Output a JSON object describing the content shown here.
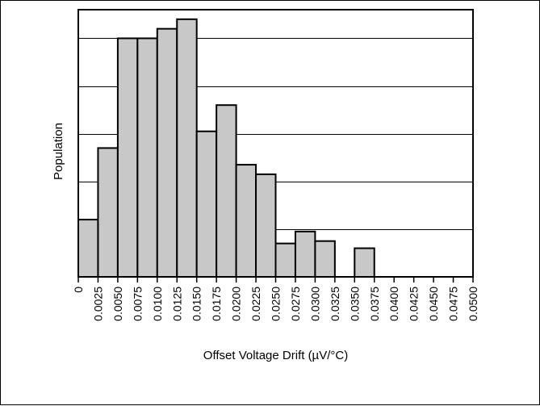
{
  "chart_data": {
    "type": "bar",
    "xlabel": "Offset Voltage Drift (µV/°C)",
    "ylabel": "Population",
    "tick_labels": [
      "0",
      "0.0025",
      "0.0050",
      "0.0075",
      "0.0100",
      "0.0125",
      "0.0150",
      "0.0175",
      "0.0200",
      "0.0225",
      "0.0250",
      "0.0275",
      "0.0300",
      "0.0325",
      "0.0350",
      "0.0375",
      "0.0400",
      "0.0425",
      "0.0450",
      "0.0475",
      "0.0500"
    ],
    "bin_edges": [
      0,
      0.0025,
      0.005,
      0.0075,
      0.01,
      0.0125,
      0.015,
      0.0175,
      0.02,
      0.0225,
      0.025,
      0.0275,
      0.03,
      0.0325,
      0.035,
      0.0375,
      0.04,
      0.0425,
      0.045,
      0.0475,
      0.05
    ],
    "values": [
      0.8,
      2.3,
      4.6,
      4.6,
      4.8,
      5.0,
      2.65,
      3.2,
      1.95,
      1.75,
      0.3,
      0.55,
      0.35,
      0.0,
      0.2,
      0.0,
      0,
      0,
      0,
      0
    ],
    "xlim": [
      0,
      0.05
    ],
    "ylim": [
      -0.4,
      5.2
    ],
    "grid_y": [
      0.6,
      1.6,
      2.6,
      3.6,
      4.6
    ],
    "grid": true,
    "colors": {
      "bar_fill": "#c8c8c8",
      "bar_edge": "#000000",
      "grid": "#000000"
    }
  }
}
